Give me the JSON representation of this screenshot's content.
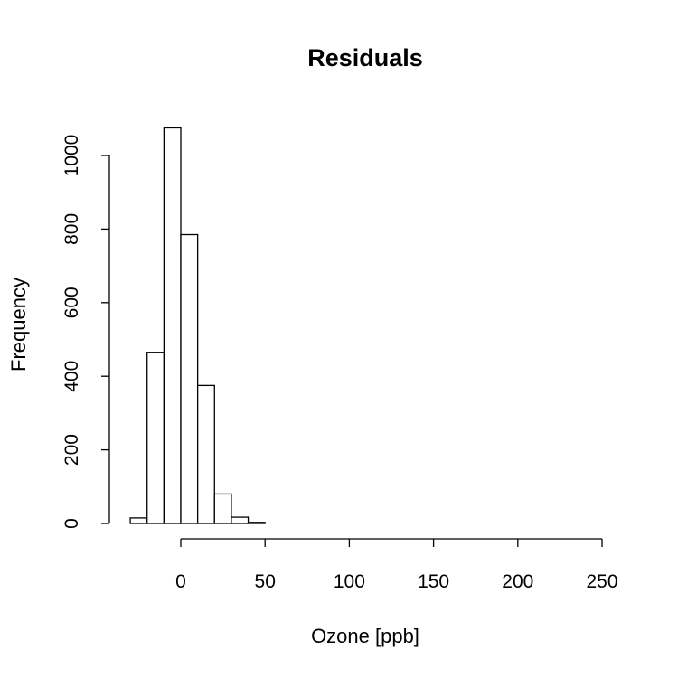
{
  "chart_data": {
    "type": "bar",
    "subtype": "histogram",
    "title": "Residuals",
    "xlabel": "Ozone [ppb]",
    "ylabel": "Frequency",
    "bin_width": 10,
    "bins": [
      {
        "start": -30,
        "end": -20,
        "count": 15
      },
      {
        "start": -20,
        "end": -10,
        "count": 465
      },
      {
        "start": -10,
        "end": 0,
        "count": 1075
      },
      {
        "start": 0,
        "end": 10,
        "count": 785
      },
      {
        "start": 10,
        "end": 20,
        "count": 375
      },
      {
        "start": 20,
        "end": 30,
        "count": 80
      },
      {
        "start": 30,
        "end": 40,
        "count": 17
      },
      {
        "start": 40,
        "end": 50,
        "count": 3
      },
      {
        "start": 50,
        "end": 60,
        "count": 0
      },
      {
        "start": 60,
        "end": 70,
        "count": 0
      },
      {
        "start": 70,
        "end": 80,
        "count": 0
      },
      {
        "start": 80,
        "end": 90,
        "count": 0
      },
      {
        "start": 90,
        "end": 100,
        "count": 0
      },
      {
        "start": 100,
        "end": 110,
        "count": 0
      },
      {
        "start": 110,
        "end": 120,
        "count": 0
      },
      {
        "start": 120,
        "end": 130,
        "count": 0
      },
      {
        "start": 130,
        "end": 140,
        "count": 0
      },
      {
        "start": 140,
        "end": 150,
        "count": 0
      },
      {
        "start": 150,
        "end": 160,
        "count": 0
      },
      {
        "start": 160,
        "end": 170,
        "count": 0
      },
      {
        "start": 170,
        "end": 180,
        "count": 0
      },
      {
        "start": 180,
        "end": 190,
        "count": 0
      },
      {
        "start": 190,
        "end": 200,
        "count": 0
      },
      {
        "start": 200,
        "end": 210,
        "count": 0
      },
      {
        "start": 210,
        "end": 220,
        "count": 0
      },
      {
        "start": 220,
        "end": 230,
        "count": 0
      },
      {
        "start": 230,
        "end": 240,
        "count": 0
      },
      {
        "start": 240,
        "end": 250,
        "count": 0
      }
    ],
    "xlim": [
      -30,
      250
    ],
    "ylim": [
      0,
      1075
    ],
    "x_ticks": [
      0,
      50,
      100,
      150,
      200,
      250
    ],
    "y_ticks": [
      0,
      200,
      400,
      600,
      800,
      1000
    ],
    "grid": false,
    "legend": "none"
  }
}
